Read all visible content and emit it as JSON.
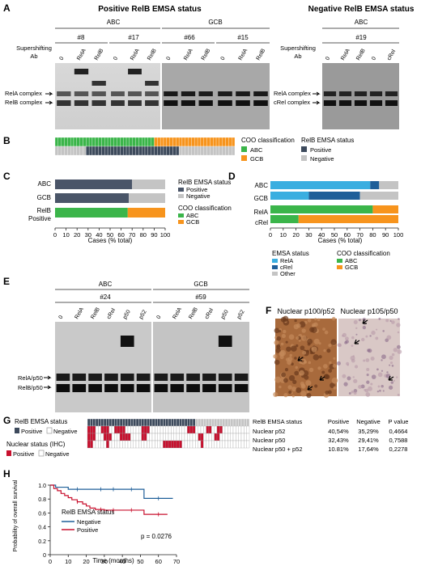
{
  "panel_letters": [
    "A",
    "B",
    "C",
    "D",
    "E",
    "F",
    "G",
    "H"
  ],
  "panel_a": {
    "positive_title": "Positive RelB EMSA status",
    "negative_title": "Negative RelB EMSA status",
    "groups_positive": [
      "ABC",
      "GCB"
    ],
    "groups_negative": [
      "ABC"
    ],
    "samples_positive": [
      "#8",
      "#17",
      "#66",
      "#15"
    ],
    "samples_negative": [
      "#19"
    ],
    "supershift_label": [
      "Supershifting",
      "Ab"
    ],
    "lanes_positive": [
      [
        "0",
        "RelA",
        "RelB"
      ],
      [
        "0",
        "RelA",
        "RelB"
      ],
      [
        "0",
        "RelA",
        "RelB"
      ],
      [
        "0",
        "RelA",
        "RelB"
      ]
    ],
    "lanes_negative": [
      "0",
      "RelA",
      "RelB",
      "0",
      "cRel"
    ],
    "complex_labels_positive": [
      "RelA complex",
      "RelB complex"
    ],
    "complex_labels_negative": [
      "RelA complex",
      "cRel complex"
    ]
  },
  "panel_b": {
    "coo_title": "COO classification",
    "coo_legend": [
      {
        "label": "ABC",
        "color": "#3bb54a"
      },
      {
        "label": "GCB",
        "color": "#f7941d"
      }
    ],
    "relb_title": "RelB EMSA status",
    "relb_legend": [
      {
        "label": "Positive",
        "color": "#3d4a5c"
      },
      {
        "label": "Negative",
        "color": "#c4c4c4"
      }
    ],
    "n_cases": 58,
    "n_abc": 32,
    "positive_start": 10,
    "positive_end": 40
  },
  "panel_c": {
    "chart_data": {
      "type": "bar",
      "orientation": "horizontal",
      "stacked": true,
      "categories": [
        "ABC",
        "GCB",
        "RelB Positive"
      ],
      "series": [
        {
          "name": "Positive",
          "color": "#4a5568",
          "values": [
            70,
            67,
            null
          ]
        },
        {
          "name": "Negative",
          "color": "#c4c4c4",
          "values": [
            30,
            33,
            null
          ]
        },
        {
          "name": "ABC",
          "color": "#3bb54a",
          "values": [
            null,
            null,
            66
          ]
        },
        {
          "name": "GCB",
          "color": "#f7941d",
          "values": [
            null,
            null,
            34
          ]
        }
      ],
      "xlim": [
        0,
        100
      ],
      "xticks": [
        "0",
        "10",
        "20",
        "30",
        "40",
        "50",
        "60",
        "70",
        "80",
        "90",
        "100"
      ],
      "xlabel": "Cases (% total)"
    },
    "category_labels": [
      "ABC",
      "GCB",
      "RelB",
      "Positive"
    ],
    "relb_title": "RelB EMSA status",
    "relb_legend": [
      "Positive",
      "Negative"
    ],
    "coo_title": "COO classification",
    "coo_legend": [
      "ABC",
      "GCB"
    ]
  },
  "panel_d": {
    "chart_data": {
      "type": "bar",
      "orientation": "horizontal",
      "stacked": true,
      "categories": [
        "ABC",
        "GCB",
        "RelA",
        "cRel"
      ],
      "series": [
        {
          "name": "RelA",
          "color": "#3aaee0",
          "values": [
            78,
            30,
            null,
            null
          ]
        },
        {
          "name": "cRel",
          "color": "#1f5f99",
          "values": [
            7,
            40,
            null,
            null
          ]
        },
        {
          "name": "Other",
          "color": "#c4c4c4",
          "values": [
            15,
            30,
            null,
            null
          ]
        },
        {
          "name": "ABC",
          "color": "#3bb54a",
          "values": [
            null,
            null,
            80,
            22
          ]
        },
        {
          "name": "GCB",
          "color": "#f7941d",
          "values": [
            null,
            null,
            20,
            78
          ]
        }
      ],
      "xlim": [
        0,
        100
      ],
      "xticks": [
        "0",
        "10",
        "20",
        "30",
        "40",
        "50",
        "60",
        "70",
        "80",
        "90",
        "100"
      ],
      "xlabel": "Cases (% total)"
    },
    "emsa_title": "EMSA status",
    "emsa_legend": [
      "RelA",
      "cRel",
      "Other"
    ],
    "coo_title": "COO classification",
    "coo_legend": [
      "ABC",
      "GCB"
    ]
  },
  "panel_e": {
    "groups": [
      "ABC",
      "GCB"
    ],
    "samples": [
      "#24",
      "#59"
    ],
    "lanes": [
      [
        "0",
        "RelA",
        "RelB",
        "cRel",
        "p50",
        "p52"
      ],
      [
        "0",
        "RelA",
        "RelB",
        "cRel",
        "p50",
        "p52"
      ]
    ],
    "complex_labels": [
      "RelA/p50",
      "RelB/p50"
    ]
  },
  "panel_f": {
    "titles": [
      "Nuclear p100/p52",
      "Nuclear p105/p50"
    ]
  },
  "panel_g": {
    "relb_title": "RelB EMSA status",
    "relb_legend": [
      "Positive",
      "Negative"
    ],
    "nuclear_title": "Nuclear status (IHC)",
    "nuclear_legend": [
      "Positive",
      "Negative"
    ],
    "table": {
      "headers": [
        "RelB EMSA status",
        "Positive",
        "Negative",
        "P value"
      ],
      "rows": [
        [
          "Nuclear p52",
          "40,54%",
          "35,29%",
          "0,4664"
        ],
        [
          "Nuclear p50",
          "32,43%",
          "29,41%",
          "0,7588"
        ],
        [
          "Nuclear p50 + p52",
          "10.81%",
          "17,64%",
          "0,2278"
        ]
      ]
    }
  },
  "panel_h": {
    "chart_data": {
      "type": "line",
      "step": true,
      "xlabel": "Time (months)",
      "ylabel": "Probability of overall survival",
      "xlim": [
        0,
        70
      ],
      "ylim": [
        0,
        1.0
      ],
      "xticks": [
        "0",
        "10",
        "20",
        "30",
        "40",
        "50",
        "60",
        "70"
      ],
      "yticks": [
        "0",
        "0.2",
        "0.4",
        "0.6",
        "0.8",
        "1.0"
      ],
      "legend_title": "RelB EMSA status",
      "annotation": "p = 0.0276",
      "series": [
        {
          "name": "Negative",
          "color": "#1f5f99",
          "x": [
            0,
            3,
            10,
            25,
            40,
            50,
            52,
            68
          ],
          "y": [
            1.0,
            0.97,
            0.94,
            0.94,
            0.94,
            0.94,
            0.81,
            0.81
          ]
        },
        {
          "name": "Positive",
          "color": "#c8102e",
          "x": [
            0,
            2,
            4,
            6,
            8,
            10,
            12,
            15,
            18,
            20,
            22,
            25,
            30,
            40,
            50,
            52,
            65
          ],
          "y": [
            1.0,
            0.95,
            0.92,
            0.88,
            0.85,
            0.82,
            0.79,
            0.76,
            0.73,
            0.7,
            0.67,
            0.65,
            0.64,
            0.64,
            0.64,
            0.58,
            0.58
          ]
        }
      ]
    }
  }
}
